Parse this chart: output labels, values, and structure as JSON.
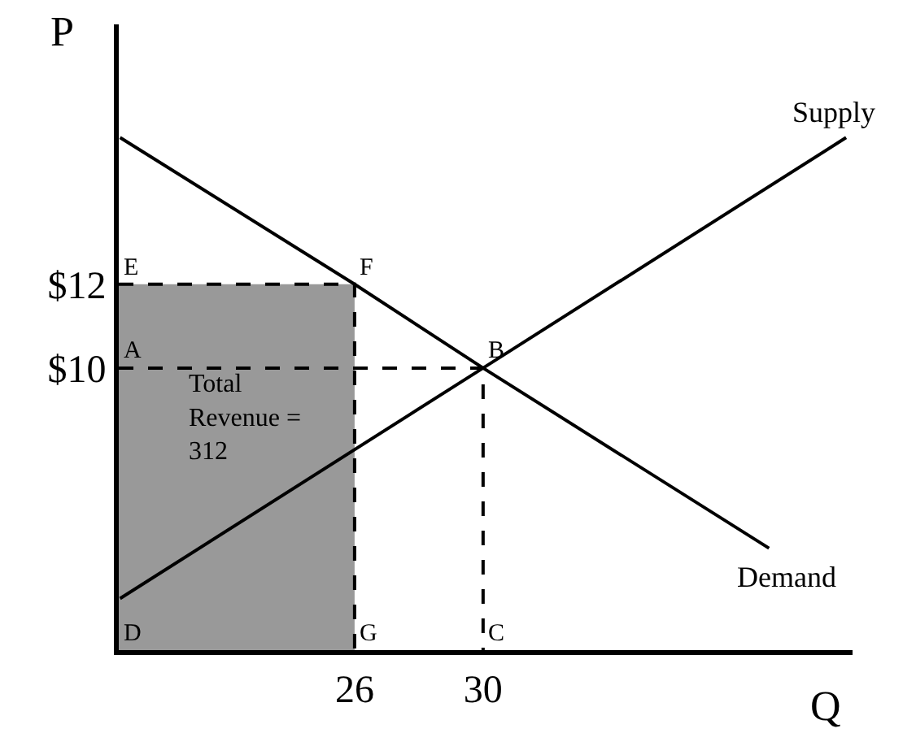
{
  "chart_data": {
    "type": "line",
    "xlabel": "Q",
    "ylabel": "P",
    "xlim": [
      18.66,
      41.5
    ],
    "ylim": [
      3.27,
      18.2
    ],
    "xticks": [
      26,
      30
    ],
    "yticks": [
      {
        "value": 12,
        "label": "$12"
      },
      {
        "value": 10,
        "label": "$10"
      }
    ],
    "grid": false,
    "legend": false,
    "marker": "none",
    "series": [
      {
        "type": "area",
        "color": "#999999",
        "x": [
          18.66,
          26
        ],
        "values": [
          12,
          12
        ]
      },
      {
        "name": "Supply",
        "color": "#000000",
        "x": [
          18.7,
          30,
          41.3
        ],
        "values": [
          4.5,
          10,
          15.5
        ]
      },
      {
        "name": "Demand",
        "color": "#000000",
        "x": [
          18.7,
          26,
          30,
          38.9
        ],
        "values": [
          15.5,
          12,
          10,
          5.7
        ]
      },
      {
        "color": "#000000",
        "line_style": "dashed",
        "x": [
          18.66,
          26,
          26
        ],
        "values": [
          12,
          12,
          3.27
        ]
      },
      {
        "color": "#000000",
        "line_style": "dashed",
        "x": [
          18.66,
          30,
          30
        ],
        "values": [
          10,
          10,
          3.27
        ]
      }
    ],
    "annotations": [
      {
        "text": "E",
        "x": 18.66,
        "y": 12
      },
      {
        "text": "F",
        "x": 26,
        "y": 12
      },
      {
        "text": "B",
        "x": 30,
        "y": 10
      },
      {
        "text": "A",
        "x": 18.66,
        "y": 10
      },
      {
        "text": "D",
        "x": 18.66,
        "y": 3.27
      },
      {
        "text": "G",
        "x": 26,
        "y": 3.27
      },
      {
        "text": "C",
        "x": 30,
        "y": 3.27
      },
      "Total\nRevenue =\n312"
    ]
  }
}
